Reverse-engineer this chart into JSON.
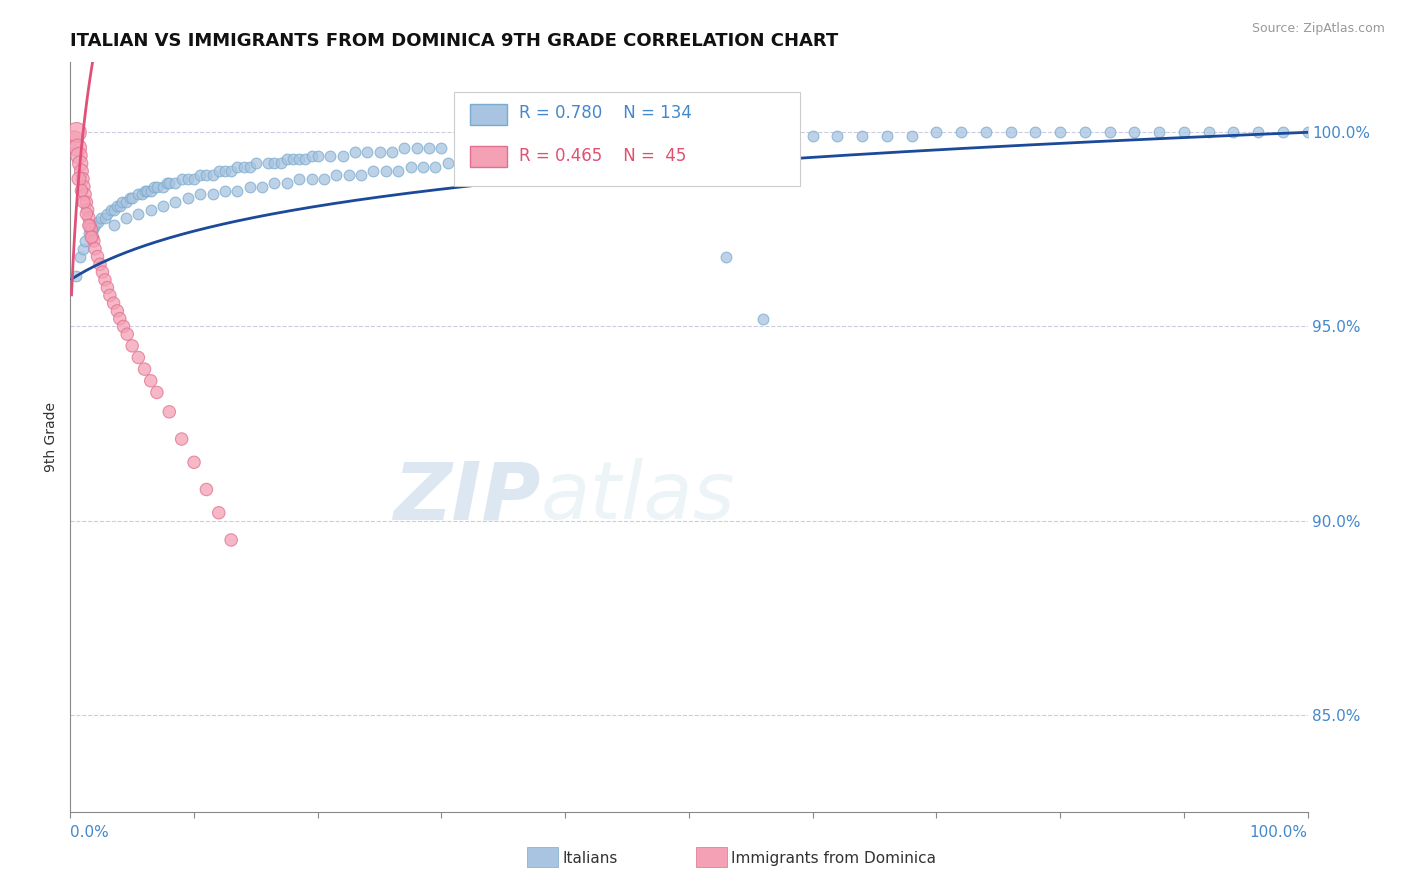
{
  "title": "ITALIAN VS IMMIGRANTS FROM DOMINICA 9TH GRADE CORRELATION CHART",
  "source": "Source: ZipAtlas.com",
  "ylabel": "9th Grade",
  "legend_blue_r": "R = 0.780",
  "legend_blue_n": "N = 134",
  "legend_pink_r": "R = 0.465",
  "legend_pink_n": "N =  45",
  "legend_blue_label": "Italians",
  "legend_pink_label": "Immigrants from Dominica",
  "blue_color": "#a8c4e0",
  "blue_edge_color": "#7aaace",
  "blue_line_color": "#1a4a99",
  "pink_color": "#f4a0b5",
  "pink_edge_color": "#e07090",
  "pink_line_color": "#e0507a",
  "watermark_zip": "ZIP",
  "watermark_atlas": "atlas",
  "ytick_labels": [
    "85.0%",
    "90.0%",
    "95.0%",
    "100.0%"
  ],
  "ytick_values": [
    0.85,
    0.9,
    0.95,
    1.0
  ],
  "xmin": 0.0,
  "xmax": 1.0,
  "ymin": 0.825,
  "ymax": 1.018,
  "title_fontsize": 13,
  "axis_label_fontsize": 10,
  "tick_fontsize": 11,
  "legend_fontsize": 12,
  "blue_scatter_x": [
    0.005,
    0.008,
    0.01,
    0.012,
    0.015,
    0.018,
    0.02,
    0.022,
    0.025,
    0.028,
    0.03,
    0.033,
    0.035,
    0.038,
    0.04,
    0.042,
    0.045,
    0.048,
    0.05,
    0.055,
    0.058,
    0.06,
    0.062,
    0.065,
    0.068,
    0.07,
    0.075,
    0.078,
    0.08,
    0.085,
    0.09,
    0.095,
    0.1,
    0.105,
    0.11,
    0.115,
    0.12,
    0.125,
    0.13,
    0.135,
    0.14,
    0.145,
    0.15,
    0.16,
    0.165,
    0.17,
    0.175,
    0.18,
    0.185,
    0.19,
    0.195,
    0.2,
    0.21,
    0.22,
    0.23,
    0.24,
    0.25,
    0.26,
    0.27,
    0.28,
    0.29,
    0.3,
    0.32,
    0.34,
    0.36,
    0.38,
    0.4,
    0.42,
    0.44,
    0.46,
    0.48,
    0.5,
    0.52,
    0.54,
    0.56,
    0.58,
    0.6,
    0.62,
    0.64,
    0.66,
    0.68,
    0.7,
    0.72,
    0.74,
    0.76,
    0.78,
    0.8,
    0.82,
    0.84,
    0.86,
    0.88,
    0.9,
    0.92,
    0.94,
    0.96,
    0.98,
    1.0,
    0.035,
    0.045,
    0.055,
    0.065,
    0.075,
    0.085,
    0.095,
    0.105,
    0.115,
    0.125,
    0.135,
    0.145,
    0.155,
    0.165,
    0.175,
    0.185,
    0.195,
    0.205,
    0.215,
    0.225,
    0.235,
    0.245,
    0.255,
    0.265,
    0.275,
    0.285,
    0.295,
    0.305,
    0.315,
    0.33,
    0.35,
    0.37,
    0.39,
    0.41,
    0.43,
    0.53,
    0.56
  ],
  "blue_scatter_y": [
    0.963,
    0.968,
    0.97,
    0.972,
    0.974,
    0.975,
    0.976,
    0.977,
    0.978,
    0.978,
    0.979,
    0.98,
    0.98,
    0.981,
    0.981,
    0.982,
    0.982,
    0.983,
    0.983,
    0.984,
    0.984,
    0.985,
    0.985,
    0.985,
    0.986,
    0.986,
    0.986,
    0.987,
    0.987,
    0.987,
    0.988,
    0.988,
    0.988,
    0.989,
    0.989,
    0.989,
    0.99,
    0.99,
    0.99,
    0.991,
    0.991,
    0.991,
    0.992,
    0.992,
    0.992,
    0.992,
    0.993,
    0.993,
    0.993,
    0.993,
    0.994,
    0.994,
    0.994,
    0.994,
    0.995,
    0.995,
    0.995,
    0.995,
    0.996,
    0.996,
    0.996,
    0.996,
    0.997,
    0.997,
    0.997,
    0.997,
    0.997,
    0.998,
    0.998,
    0.998,
    0.998,
    0.998,
    0.998,
    0.999,
    0.999,
    0.999,
    0.999,
    0.999,
    0.999,
    0.999,
    0.999,
    1.0,
    1.0,
    1.0,
    1.0,
    1.0,
    1.0,
    1.0,
    1.0,
    1.0,
    1.0,
    1.0,
    1.0,
    1.0,
    1.0,
    1.0,
    1.0,
    0.976,
    0.978,
    0.979,
    0.98,
    0.981,
    0.982,
    0.983,
    0.984,
    0.984,
    0.985,
    0.985,
    0.986,
    0.986,
    0.987,
    0.987,
    0.988,
    0.988,
    0.988,
    0.989,
    0.989,
    0.989,
    0.99,
    0.99,
    0.99,
    0.991,
    0.991,
    0.991,
    0.992,
    0.992,
    0.993,
    0.993,
    0.994,
    0.994,
    0.995,
    0.995,
    0.968,
    0.952
  ],
  "pink_scatter_x": [
    0.003,
    0.005,
    0.006,
    0.007,
    0.008,
    0.009,
    0.01,
    0.011,
    0.012,
    0.013,
    0.014,
    0.015,
    0.016,
    0.017,
    0.018,
    0.019,
    0.02,
    0.022,
    0.024,
    0.026,
    0.028,
    0.03,
    0.032,
    0.035,
    0.038,
    0.04,
    0.043,
    0.046,
    0.05,
    0.055,
    0.06,
    0.065,
    0.07,
    0.08,
    0.09,
    0.1,
    0.11,
    0.12,
    0.13,
    0.007,
    0.009,
    0.011,
    0.013,
    0.015,
    0.017
  ],
  "pink_scatter_y": [
    0.998,
    1.0,
    0.996,
    0.994,
    0.992,
    0.99,
    0.988,
    0.986,
    0.984,
    0.982,
    0.98,
    0.978,
    0.976,
    0.975,
    0.973,
    0.972,
    0.97,
    0.968,
    0.966,
    0.964,
    0.962,
    0.96,
    0.958,
    0.956,
    0.954,
    0.952,
    0.95,
    0.948,
    0.945,
    0.942,
    0.939,
    0.936,
    0.933,
    0.928,
    0.921,
    0.915,
    0.908,
    0.902,
    0.895,
    0.988,
    0.985,
    0.982,
    0.979,
    0.976,
    0.973
  ],
  "pink_scatter_sizes": [
    180,
    200,
    160,
    140,
    120,
    100,
    90,
    80,
    80,
    80,
    80,
    80,
    80,
    80,
    80,
    80,
    80,
    80,
    80,
    80,
    80,
    80,
    80,
    80,
    80,
    80,
    80,
    80,
    80,
    80,
    80,
    80,
    80,
    80,
    80,
    80,
    80,
    80,
    80,
    100,
    80,
    80,
    80,
    80,
    80
  ]
}
